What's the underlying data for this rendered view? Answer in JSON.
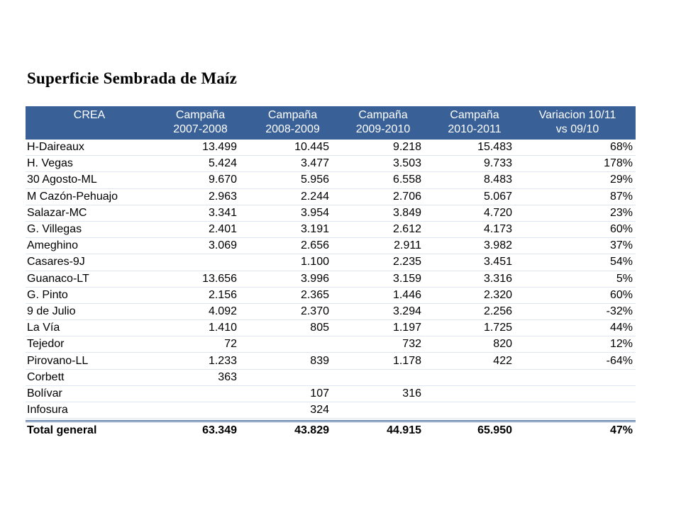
{
  "title": "Superficie Sembrada de Maíz",
  "header": {
    "col0": "CREA",
    "col1": [
      "Campaña",
      "2007-2008"
    ],
    "col2": [
      "Campaña",
      "2008-2009"
    ],
    "col3": [
      "Campaña",
      "2009-2010"
    ],
    "col4": [
      "Campaña",
      "2010-2011"
    ],
    "col5": [
      "Variacion 10/11",
      "vs 09/10"
    ]
  },
  "rows": [
    [
      "H-Daireaux",
      "13.499",
      "10.445",
      "9.218",
      "15.483",
      "68%"
    ],
    [
      "H. Vegas",
      "5.424",
      "3.477",
      "3.503",
      "9.733",
      "178%"
    ],
    [
      "30 Agosto-ML",
      "9.670",
      "5.956",
      "6.558",
      "8.483",
      "29%"
    ],
    [
      "M Cazón-Pehuajo",
      "2.963",
      "2.244",
      "2.706",
      "5.067",
      "87%"
    ],
    [
      "Salazar-MC",
      "3.341",
      "3.954",
      "3.849",
      "4.720",
      "23%"
    ],
    [
      "G. Villegas",
      "2.401",
      "3.191",
      "2.612",
      "4.173",
      "60%"
    ],
    [
      "Ameghino",
      "3.069",
      "2.656",
      "2.911",
      "3.982",
      "37%"
    ],
    [
      "Casares-9J",
      "",
      "1.100",
      "2.235",
      "3.451",
      "54%"
    ],
    [
      "Guanaco-LT",
      "13.656",
      "3.996",
      "3.159",
      "3.316",
      "5%"
    ],
    [
      "G. Pinto",
      "2.156",
      "2.365",
      "1.446",
      "2.320",
      "60%"
    ],
    [
      "9 de Julio",
      "4.092",
      "2.370",
      "3.294",
      "2.256",
      "-32%"
    ],
    [
      "La Vía",
      "1.410",
      "805",
      "1.197",
      "1.725",
      "44%"
    ],
    [
      "Tejedor",
      "72",
      "",
      "732",
      "820",
      "12%"
    ],
    [
      "Pirovano-LL",
      "1.233",
      "839",
      "1.178",
      "422",
      "-64%"
    ],
    [
      "Corbett",
      "363",
      "",
      "",
      "",
      ""
    ],
    [
      "Bolívar",
      "",
      "107",
      "316",
      "",
      ""
    ],
    [
      "Infosura",
      "",
      "324",
      "",
      "",
      ""
    ]
  ],
  "total": [
    "Total general",
    "63.349",
    "43.829",
    "44.915",
    "65.950",
    "47%"
  ]
}
